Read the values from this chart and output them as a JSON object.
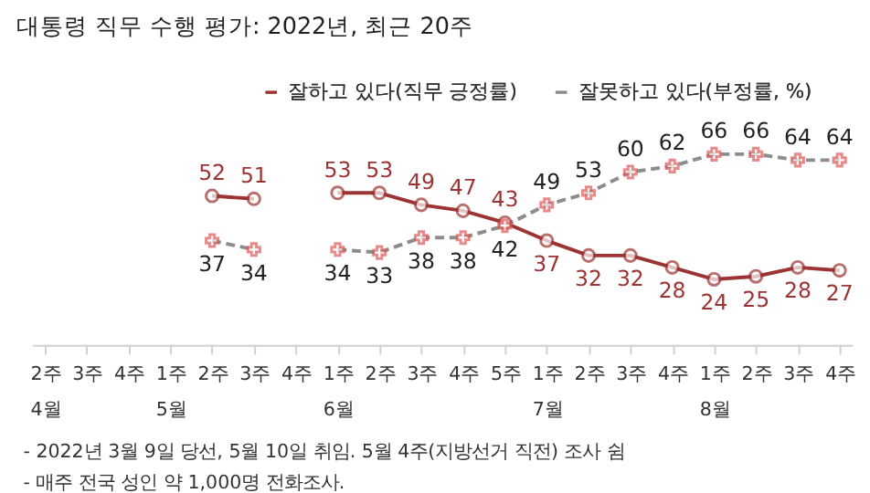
{
  "chart_data": {
    "type": "line",
    "title": "대통령 직무 수행 평가: 2022년, 최근 20주",
    "categories": [
      "2주\n4월",
      "3주",
      "4주",
      "1주\n5월",
      "2주",
      "3주",
      "4주",
      "1주\n6월",
      "2주",
      "3주",
      "4주",
      "5주",
      "1주\n7월",
      "2주",
      "3주",
      "4주",
      "1주\n8월",
      "2주",
      "3주",
      "4주"
    ],
    "series": [
      {
        "name": "잘하고 있다(직무 긍정률)",
        "color": "#9b3432",
        "marker": "circle",
        "line_style": "solid",
        "values": [
          null,
          null,
          null,
          null,
          52,
          51,
          null,
          53,
          53,
          49,
          47,
          43,
          37,
          32,
          32,
          28,
          24,
          25,
          28,
          27
        ]
      },
      {
        "name": "잘못하고 있다(부정률, %)",
        "color": "#8c8c8c",
        "marker": "cross",
        "line_style": "dashed",
        "values": [
          null,
          null,
          null,
          null,
          37,
          34,
          null,
          34,
          33,
          38,
          38,
          42,
          49,
          53,
          60,
          62,
          66,
          66,
          64,
          64
        ]
      }
    ],
    "data_labels": true,
    "grid": false,
    "legend": "top right",
    "annotations": [
      "- 2022년 3월 9일 당선, 5월 10일 취임. 5월 4주(지방선거 직전) 조사 쉼",
      "- 매주 전국 성인 약 1,000명 전화조사."
    ]
  }
}
